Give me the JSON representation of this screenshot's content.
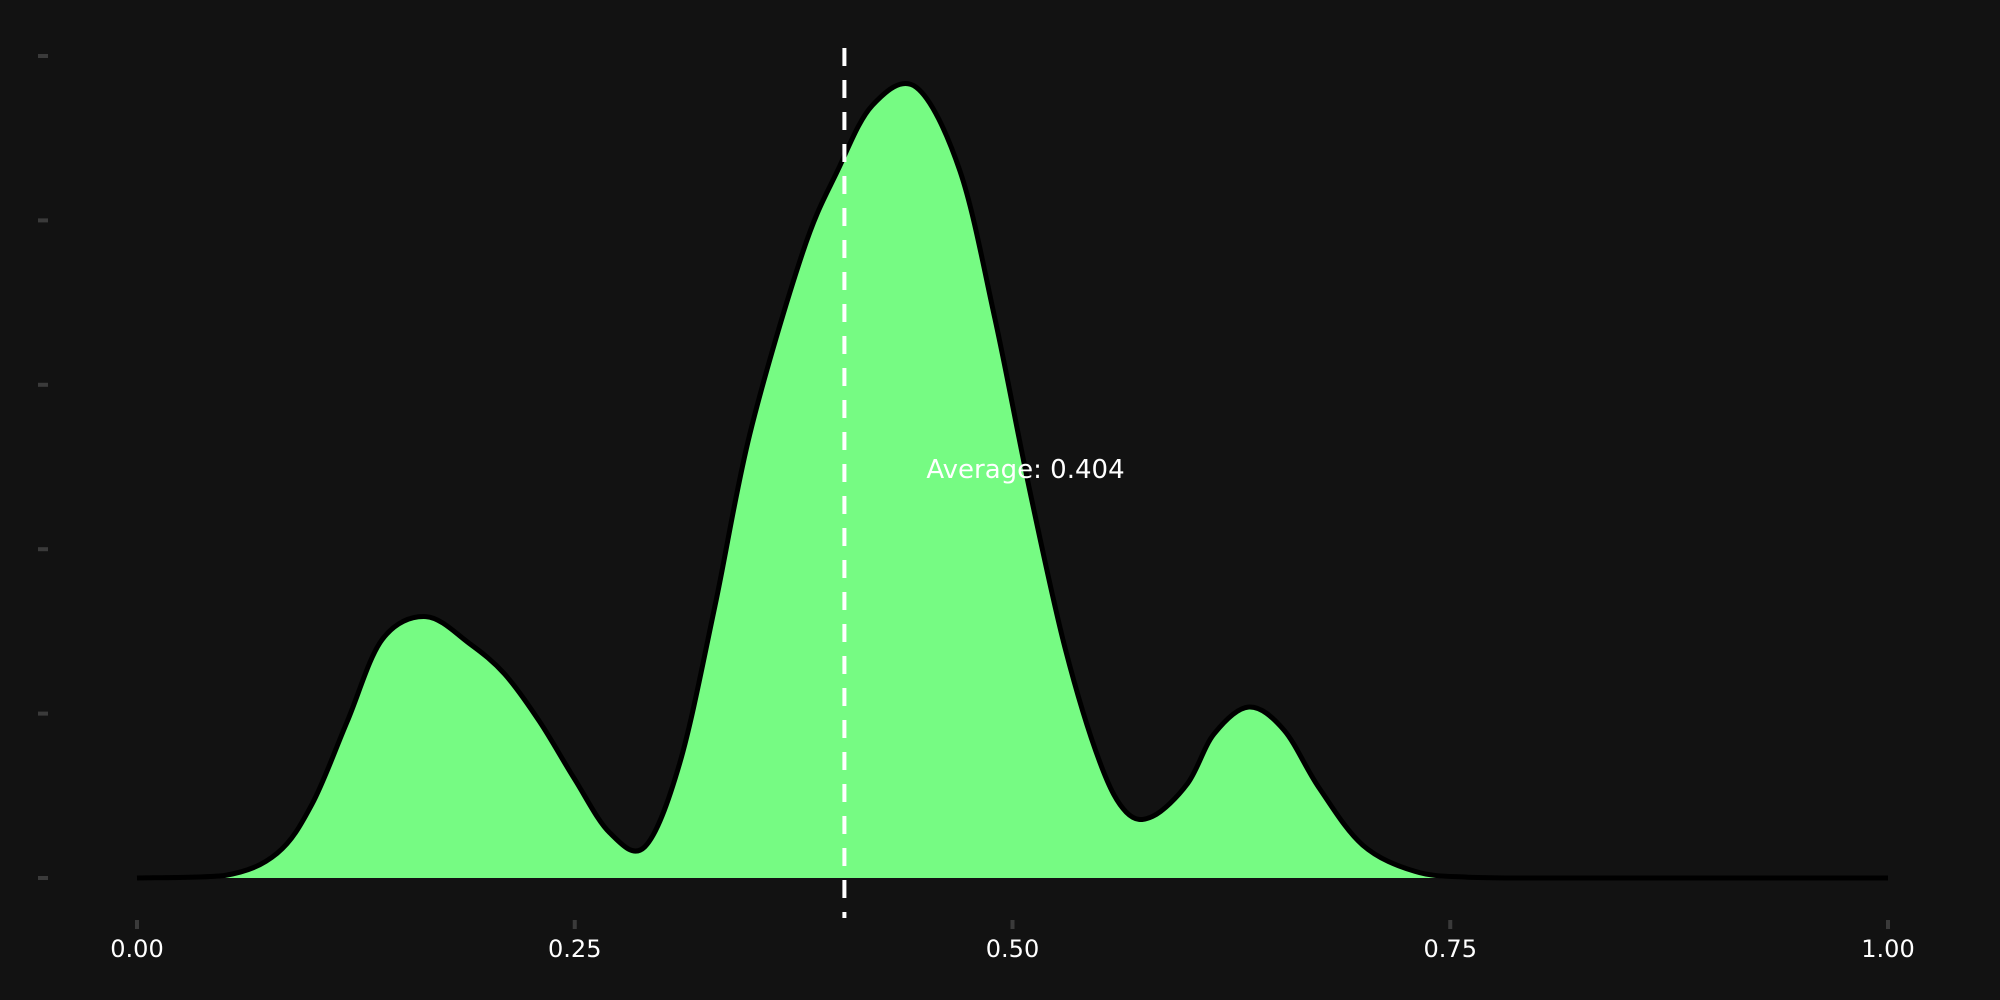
{
  "colors": {
    "background": "#121212",
    "fill": "#76fb83",
    "outline": "#000000",
    "mean_line": "#ffffff",
    "tick": "#3a3a3a",
    "text": "#ffffff"
  },
  "chart_data": {
    "type": "area",
    "subtype": "density",
    "title": "",
    "xlabel": "",
    "ylabel": "",
    "xlim": [
      0,
      1
    ],
    "ylim": [
      0,
      1
    ],
    "x_ticks": [
      0.0,
      0.25,
      0.5,
      0.75,
      1.0
    ],
    "x_tick_labels": [
      "0.00",
      "0.25",
      "0.50",
      "0.75",
      "1.00"
    ],
    "y_ticks": [
      0,
      0.2,
      0.4,
      0.6,
      0.8,
      1.0
    ],
    "y_tick_labels_shown": false,
    "grid": false,
    "legend": "none",
    "x": [
      0.0,
      0.05,
      0.08,
      0.1,
      0.12,
      0.14,
      0.165,
      0.19,
      0.21,
      0.23,
      0.25,
      0.27,
      0.29,
      0.31,
      0.33,
      0.35,
      0.38,
      0.4,
      0.42,
      0.445,
      0.47,
      0.49,
      0.51,
      0.53,
      0.55,
      0.565,
      0.58,
      0.6,
      0.615,
      0.635,
      0.655,
      0.675,
      0.7,
      0.73,
      0.76,
      0.8,
      0.9,
      1.0
    ],
    "y": [
      0.0,
      0.003,
      0.03,
      0.09,
      0.19,
      0.29,
      0.318,
      0.285,
      0.248,
      0.19,
      0.12,
      0.055,
      0.038,
      0.14,
      0.33,
      0.54,
      0.76,
      0.86,
      0.94,
      0.962,
      0.86,
      0.68,
      0.47,
      0.28,
      0.14,
      0.08,
      0.075,
      0.115,
      0.175,
      0.208,
      0.18,
      0.11,
      0.04,
      0.008,
      0.001,
      0.0,
      0.0,
      0.0
    ],
    "mean": 0.404,
    "annotation": {
      "label": "Average: 0.404"
    }
  }
}
